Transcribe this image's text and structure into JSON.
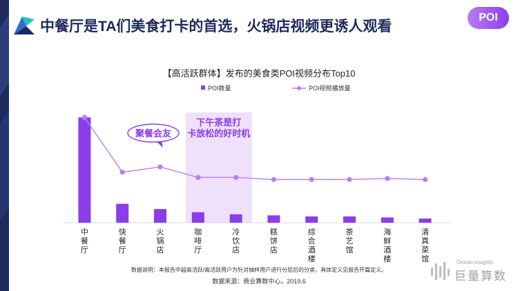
{
  "header": {
    "title": "中餐厅是TA们美食打卡的首选，火锅店视频更诱人观看",
    "badge": "POI"
  },
  "colors": {
    "accent": "#8b3dea",
    "accent_light": "#b77ef2",
    "highlight_bg": "#efe0fb",
    "navy": "#1c2a5c"
  },
  "chart_data": {
    "type": "bar",
    "title": "【高活跃群体】发布的美食类POI视频分布Top10",
    "categories": [
      "中餐厅",
      "快餐厅",
      "火锅店",
      "咖啡厅",
      "冷饮店",
      "糕饼店",
      "综合酒楼",
      "茶艺馆",
      "海鲜酒楼",
      "清真菜馆"
    ],
    "series": [
      {
        "name": "POI数量",
        "kind": "bar",
        "values": [
          100,
          18,
          13,
          10,
          8,
          7,
          6,
          6,
          5,
          4
        ]
      },
      {
        "name": "POI视频播放量",
        "kind": "line",
        "values": [
          100,
          48,
          53,
          43,
          43,
          41,
          41,
          41,
          42,
          41
        ]
      }
    ],
    "ylim": [
      0,
      110
    ],
    "legend_position": "top",
    "annotations": [
      {
        "text": "聚餐会友",
        "category": "火锅店"
      },
      {
        "text": "下午茶是打卡放松的好时机",
        "category": "咖啡厅"
      }
    ]
  },
  "footer": {
    "note": "数据说明：本报告中超高活跃/高活跃用户为针对抽样用户进行分层后的分类，具体定义见报告开篇定义。",
    "source": "数据来源：商业算数中心，2019.6",
    "brand_en": "Ocean insights",
    "brand_cn": "巨量算数"
  }
}
